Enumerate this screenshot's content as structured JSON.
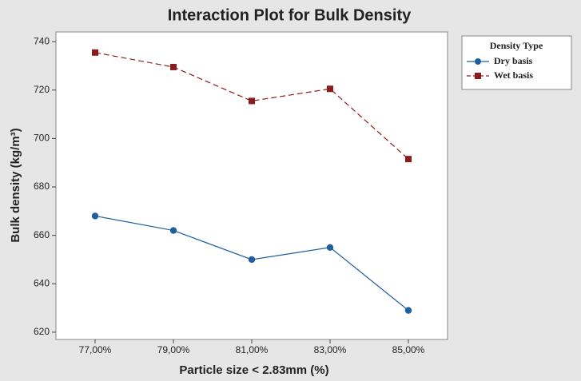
{
  "chart_data": {
    "type": "line",
    "title": "Interaction Plot for Bulk Density",
    "xlabel": "Particle size < 2.83mm (%)",
    "ylabel": "Bulk density (kg/m³)",
    "categories": [
      "77,00%",
      "79,00%",
      "81,00%",
      "83,00%",
      "85,00%"
    ],
    "series": [
      {
        "name": "Dry basis",
        "color": "#1f5f9e",
        "marker": "circle",
        "linestyle": "solid",
        "values": [
          668,
          662,
          650,
          655,
          629
        ]
      },
      {
        "name": "Wet basis",
        "color": "#8b1c1c",
        "marker": "square",
        "linestyle": "dashed",
        "values": [
          735.5,
          729.5,
          715.5,
          720.5,
          691.5
        ]
      }
    ],
    "legend_title": "Density Type",
    "legend": "outside-right",
    "ylim": [
      617,
      744
    ],
    "yticks": [
      620,
      640,
      660,
      680,
      700,
      720,
      740
    ],
    "grid": false
  }
}
